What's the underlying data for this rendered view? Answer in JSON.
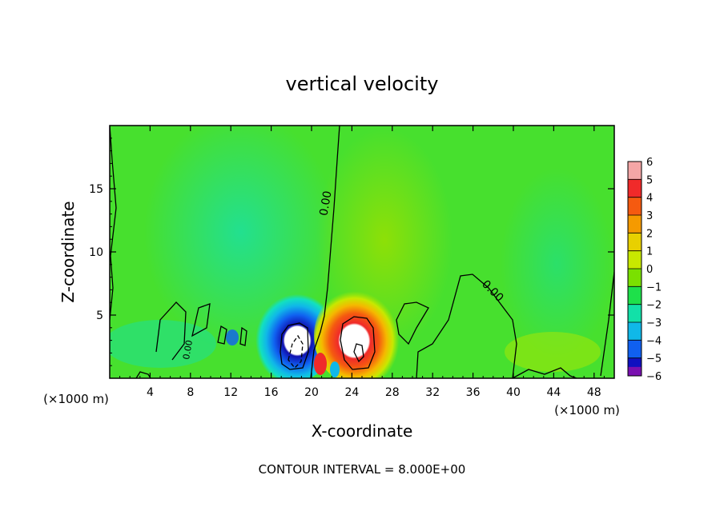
{
  "chart_data": {
    "type": "heatmap",
    "title": "vertical velocity",
    "xlabel": "X-coordinate",
    "ylabel": "Z-coordinate",
    "x_units": "(×1000 m)",
    "y_units": "(×1000 m)",
    "xlim": [
      0,
      50
    ],
    "ylim": [
      0,
      20
    ],
    "x_ticks": [
      4,
      8,
      12,
      16,
      20,
      24,
      28,
      32,
      36,
      40,
      44,
      48
    ],
    "x_tick_labels": [
      "4",
      "8",
      "12",
      "16",
      "20",
      "24",
      "28",
      "32",
      "36",
      "40",
      "44",
      "48"
    ],
    "y_ticks": [
      5,
      10,
      15
    ],
    "y_tick_labels": [
      "5",
      "10",
      "15"
    ],
    "colorbar": {
      "levels": [
        6,
        5,
        4,
        3,
        2,
        1,
        0,
        -1,
        -2,
        -3,
        -4,
        -5,
        -6
      ],
      "labels": [
        "6",
        "5",
        "4",
        "3",
        "2",
        "1",
        "0",
        "−1",
        "−2",
        "−3",
        "−4",
        "−5",
        "−6"
      ],
      "colors": [
        "#f4a6a6",
        "#f02a2a",
        "#f55a10",
        "#f59a00",
        "#e8d000",
        "#c8e800",
        "#7ae000",
        "#1ee04a",
        "#12e0a8",
        "#10b8e8",
        "#1060f0",
        "#1010c0",
        "#7a10b0"
      ]
    },
    "contour_labels": [
      "0.00",
      "0.00",
      "0.00"
    ],
    "contour_interval_text": "CONTOUR INTERVAL = 8.000E+00",
    "features": [
      {
        "name": "downdraft",
        "x": 18.5,
        "z": 2.8,
        "value": -6
      },
      {
        "name": "updraft",
        "x": 24.5,
        "z": 2.8,
        "value": 6
      },
      {
        "name": "weak-negative-aloft",
        "x": 15,
        "z": 13,
        "value": -1
      },
      {
        "name": "weak-positive-aloft",
        "x": 25,
        "z": 14,
        "value": 1
      },
      {
        "name": "weak-negative-right",
        "x": 45,
        "z": 10,
        "value": -0.6
      }
    ]
  }
}
